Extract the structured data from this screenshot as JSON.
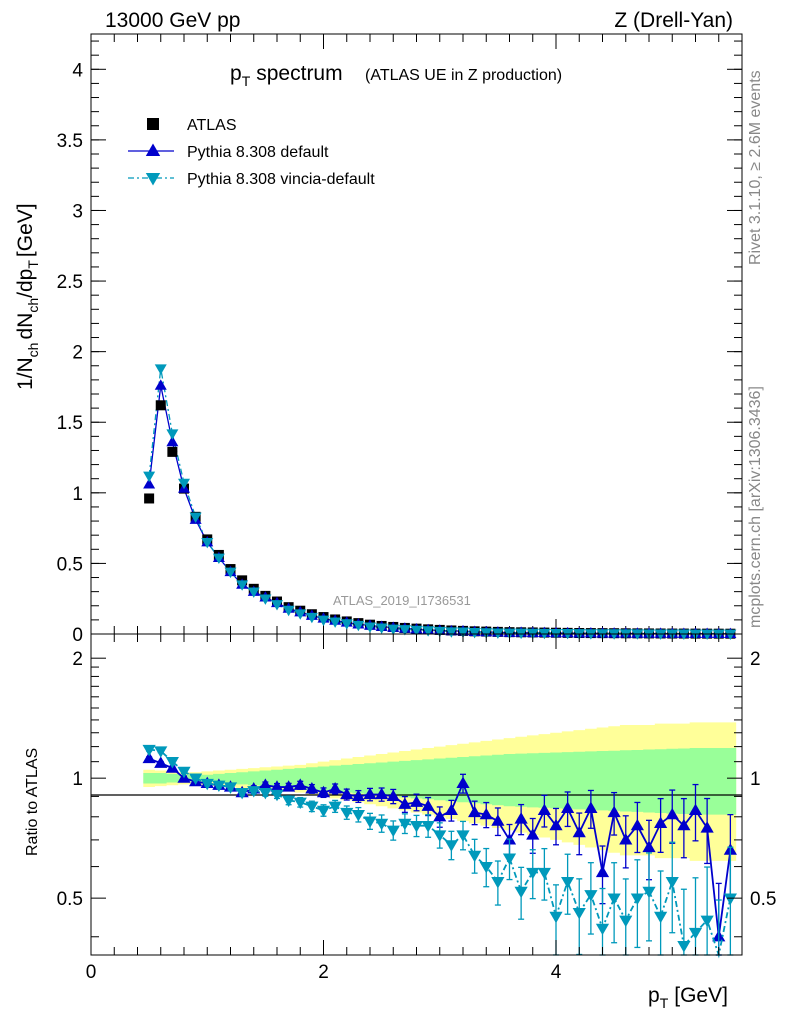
{
  "header": {
    "left": "13000 GeV pp",
    "right": "Z (Drell-Yan)"
  },
  "side": {
    "rivet": "Rivet 3.1.10, ≥ 2.6M events",
    "mcplots": "mcplots.cern.ch [arXiv:1306.3436]"
  },
  "main_plot": {
    "title_main": "spectrum",
    "title_sub": "(ATLAS UE in Z production)",
    "ylabel": "1/N dN /dp [GeV]",
    "watermark": "ATLAS_2019_I1736531",
    "yticks": [
      "0",
      "0.5",
      "1",
      "1.5",
      "2",
      "2.5",
      "3",
      "3.5",
      "4"
    ]
  },
  "legend": [
    {
      "label": "ATLAS",
      "color": "#000000",
      "marker": "square"
    },
    {
      "label": "Pythia 8.308 default",
      "color": "#0000cc",
      "marker": "triangle-up"
    },
    {
      "label": "Pythia 8.308 vincia-default",
      "color": "#0099bb",
      "marker": "triangle-down"
    }
  ],
  "ratio_plot": {
    "ylabel": "Ratio to ATLAS",
    "yticks_left": [
      "0.5",
      "1",
      "2"
    ],
    "yticks_right": [
      "0.5",
      "1",
      "2"
    ],
    "xticks": [
      "0",
      "2",
      "4"
    ],
    "xlabel": "[GeV]"
  },
  "chart_data": [
    {
      "type": "scatter",
      "title": "p_T spectrum (ATLAS UE in Z production)",
      "xlabel": "p_T [GeV]",
      "ylabel": "1/N_ch dN_ch/dp_T [GeV]",
      "xlim": [
        0,
        5.6
      ],
      "ylim": [
        0,
        4.25
      ],
      "x": [
        0.5,
        0.6,
        0.7,
        0.8,
        0.9,
        1.0,
        1.1,
        1.2,
        1.3,
        1.4,
        1.5,
        1.6,
        1.7,
        1.8,
        1.9,
        2.0,
        2.1,
        2.2,
        2.3,
        2.4,
        2.5,
        2.6,
        2.7,
        2.8,
        2.9,
        3.0,
        3.1,
        3.2,
        3.3,
        3.4,
        3.5,
        3.6,
        3.7,
        3.8,
        3.9,
        4.0,
        4.1,
        4.2,
        4.3,
        4.4,
        4.5,
        4.6,
        4.7,
        4.8,
        4.9,
        5.0,
        5.1,
        5.2,
        5.3,
        5.4,
        5.5
      ],
      "series": [
        {
          "name": "ATLAS",
          "values": [
            0.96,
            1.62,
            1.29,
            1.03,
            0.83,
            0.67,
            0.56,
            0.46,
            0.38,
            0.32,
            0.27,
            0.23,
            0.19,
            0.165,
            0.14,
            0.12,
            0.103,
            0.089,
            0.077,
            0.066,
            0.057,
            0.05,
            0.043,
            0.038,
            0.033,
            0.029,
            0.025,
            0.022,
            0.019,
            0.017,
            0.015,
            0.013,
            0.012,
            0.011,
            0.01,
            0.009,
            0.008,
            0.007,
            0.0065,
            0.006,
            0.0055,
            0.005,
            0.0045,
            0.004,
            0.0036,
            0.0032,
            0.003,
            0.0027,
            0.0025,
            0.0023,
            0.0021
          ]
        },
        {
          "name": "Pythia 8.308 default",
          "values": [
            1.06,
            1.76,
            1.36,
            1.03,
            0.81,
            0.65,
            0.54,
            0.44,
            0.35,
            0.3,
            0.26,
            0.22,
            0.18,
            0.155,
            0.13,
            0.11,
            0.095,
            0.082,
            0.069,
            0.06,
            0.052,
            0.045,
            0.039,
            0.034,
            0.029,
            0.025,
            0.021,
            0.021,
            0.016,
            0.014,
            0.012,
            0.009,
            0.01,
            0.008,
            0.0085,
            0.007,
            0.0065,
            0.005,
            0.0055,
            0.0045,
            0.0045,
            0.004,
            0.0035,
            0.0033,
            0.003,
            0.0025,
            0.0025,
            0.0022,
            0.0018,
            0.0015,
            0.0014
          ]
        },
        {
          "name": "Pythia 8.308 vincia-default",
          "values": [
            1.12,
            1.88,
            1.42,
            1.07,
            0.83,
            0.65,
            0.54,
            0.44,
            0.35,
            0.3,
            0.25,
            0.21,
            0.17,
            0.145,
            0.12,
            0.1,
            0.087,
            0.075,
            0.063,
            0.052,
            0.045,
            0.037,
            0.033,
            0.029,
            0.025,
            0.021,
            0.017,
            0.016,
            0.013,
            0.011,
            0.0095,
            0.0085,
            0.008,
            0.007,
            0.0065,
            0.006,
            0.0055,
            0.0045,
            0.0042,
            0.0038,
            0.0035,
            0.0032,
            0.0028,
            0.0025,
            0.0022,
            0.0019,
            0.0017,
            0.0015,
            0.0012,
            0.0011,
            0.001
          ]
        }
      ]
    },
    {
      "type": "scatter",
      "title": "",
      "xlabel": "p_T [GeV]",
      "ylabel": "Ratio to ATLAS",
      "xlim": [
        0,
        5.6
      ],
      "ylim": [
        0.36,
        2.3
      ],
      "yscale": "log",
      "reference_line": 1.0,
      "band_colors": {
        "inner": "#99ff99",
        "outer": "#ffff99"
      },
      "band_inner_halfwidth": [
        0.03,
        0.03,
        0.025,
        0.02,
        0.02,
        0.02,
        0.025,
        0.03,
        0.035,
        0.04,
        0.045,
        0.05,
        0.055,
        0.06,
        0.065,
        0.07,
        0.075,
        0.08,
        0.085,
        0.09,
        0.095,
        0.1,
        0.105,
        0.11,
        0.115,
        0.12,
        0.125,
        0.13,
        0.135,
        0.14,
        0.145,
        0.15,
        0.152,
        0.155,
        0.157,
        0.16,
        0.162,
        0.165,
        0.167,
        0.17,
        0.172,
        0.175,
        0.177,
        0.18,
        0.182,
        0.185,
        0.187,
        0.19,
        0.19,
        0.19,
        0.19
      ],
      "band_outer_halfwidth": [
        0.05,
        0.045,
        0.04,
        0.035,
        0.035,
        0.04,
        0.045,
        0.05,
        0.055,
        0.06,
        0.065,
        0.07,
        0.075,
        0.08,
        0.09,
        0.1,
        0.11,
        0.12,
        0.13,
        0.14,
        0.15,
        0.16,
        0.17,
        0.18,
        0.19,
        0.2,
        0.21,
        0.22,
        0.23,
        0.24,
        0.25,
        0.26,
        0.27,
        0.28,
        0.29,
        0.3,
        0.31,
        0.32,
        0.33,
        0.34,
        0.35,
        0.36,
        0.36,
        0.36,
        0.37,
        0.37,
        0.37,
        0.38,
        0.38,
        0.38,
        0.38
      ],
      "x": [
        0.5,
        0.6,
        0.7,
        0.8,
        0.9,
        1.0,
        1.1,
        1.2,
        1.3,
        1.4,
        1.5,
        1.6,
        1.7,
        1.8,
        1.9,
        2.0,
        2.1,
        2.2,
        2.3,
        2.4,
        2.5,
        2.6,
        2.7,
        2.8,
        2.9,
        3.0,
        3.1,
        3.2,
        3.3,
        3.4,
        3.5,
        3.6,
        3.7,
        3.8,
        3.9,
        4.0,
        4.1,
        4.2,
        4.3,
        4.4,
        4.5,
        4.6,
        4.7,
        4.8,
        4.9,
        5.0,
        5.1,
        5.2,
        5.3,
        5.4,
        5.5
      ],
      "series": [
        {
          "name": "Pythia 8.308 default",
          "values": [
            1.12,
            1.09,
            1.06,
            1.0,
            0.98,
            0.97,
            0.96,
            0.95,
            0.92,
            0.94,
            0.96,
            0.95,
            0.95,
            0.96,
            0.94,
            0.92,
            0.94,
            0.91,
            0.9,
            0.91,
            0.91,
            0.9,
            0.86,
            0.87,
            0.85,
            0.8,
            0.83,
            0.97,
            0.82,
            0.81,
            0.78,
            0.7,
            0.79,
            0.72,
            0.83,
            0.76,
            0.84,
            0.73,
            0.84,
            0.58,
            0.82,
            0.7,
            0.76,
            0.67,
            0.77,
            0.81,
            0.76,
            0.83,
            0.75,
            0.4,
            0.66
          ]
        },
        {
          "name": "Pythia 8.308 vincia-default",
          "values": [
            1.18,
            1.17,
            1.1,
            1.04,
            1.0,
            0.97,
            0.96,
            0.95,
            0.92,
            0.93,
            0.92,
            0.91,
            0.88,
            0.87,
            0.85,
            0.83,
            0.85,
            0.82,
            0.81,
            0.78,
            0.77,
            0.74,
            0.77,
            0.76,
            0.76,
            0.72,
            0.68,
            0.72,
            0.64,
            0.6,
            0.55,
            0.63,
            0.52,
            0.58,
            0.58,
            0.45,
            0.55,
            0.46,
            0.51,
            0.42,
            0.5,
            0.44,
            0.5,
            0.52,
            0.45,
            0.55,
            0.38,
            0.41,
            0.44,
            0.33,
            0.5
          ]
        }
      ]
    }
  ]
}
